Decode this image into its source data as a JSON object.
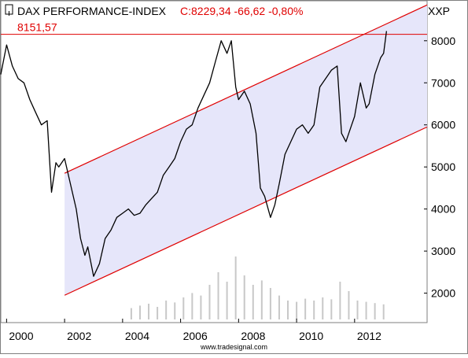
{
  "header": {
    "index_name": "DAX PERFORMANCE-INDEX",
    "quote": "C:8229,34 -66,62 -0,80%",
    "symbol": "XXP"
  },
  "watermark": "www.tradesignal.com",
  "colors": {
    "price_line": "#000000",
    "channel_line": "#e00000",
    "channel_fill": "#e6e6fa",
    "horizontal_line": "#e00000",
    "title_quote": "#e00000",
    "volume": "#c8c8c8",
    "frame": "#7f7f7f"
  },
  "chart_data": {
    "type": "line",
    "title": "DAX PERFORMANCE-INDEX",
    "xlim": [
      1999.8,
      2014.5
    ],
    "ylim": [
      1300,
      8950
    ],
    "x_ticks": [
      "2000",
      "2002",
      "2004",
      "2006",
      "2008",
      "2010",
      "2012"
    ],
    "y_ticks": [
      "2000",
      "3000",
      "4000",
      "5000",
      "6000",
      "7000",
      "8000"
    ],
    "grid": false,
    "legend": "none",
    "series": [
      {
        "x": [
          1999.8,
          2000.0,
          2000.2,
          2000.4,
          2000.6,
          2000.8,
          2001.0,
          2001.2,
          2001.4,
          2001.55,
          2001.7,
          2001.8,
          2002.0,
          2002.2,
          2002.4,
          2002.55,
          2002.7,
          2002.8,
          2003.0,
          2003.2,
          2003.4,
          2003.6,
          2003.8,
          2004.0,
          2004.2,
          2004.4,
          2004.6,
          2004.8,
          2005.0,
          2005.2,
          2005.4,
          2005.6,
          2005.8,
          2006.0,
          2006.2,
          2006.4,
          2006.6,
          2006.8,
          2007.0,
          2007.2,
          2007.4,
          2007.6,
          2007.75,
          2007.9,
          2008.0,
          2008.2,
          2008.4,
          2008.6,
          2008.75,
          2008.9,
          2009.1,
          2009.25,
          2009.4,
          2009.6,
          2009.8,
          2010.0,
          2010.2,
          2010.4,
          2010.6,
          2010.8,
          2011.0,
          2011.2,
          2011.4,
          2011.55,
          2011.7,
          2011.9,
          2012.0,
          2012.2,
          2012.4,
          2012.5,
          2012.7,
          2012.9,
          2013.0,
          2013.1
        ],
        "values": [
          7200,
          7900,
          7400,
          7100,
          7000,
          6600,
          6300,
          6000,
          6100,
          4400,
          5100,
          5000,
          5200,
          4600,
          4000,
          3300,
          2900,
          3100,
          2400,
          2700,
          3300,
          3500,
          3800,
          3900,
          4000,
          3850,
          3900,
          4100,
          4250,
          4400,
          4800,
          5000,
          5200,
          5600,
          5900,
          6000,
          6400,
          6700,
          7000,
          7500,
          8000,
          7700,
          8000,
          6900,
          6600,
          6800,
          6500,
          5800,
          4500,
          4300,
          3800,
          4100,
          4600,
          5300,
          5600,
          5900,
          6000,
          5800,
          6000,
          6900,
          7100,
          7300,
          7400,
          5800,
          5600,
          6000,
          6200,
          7000,
          6400,
          6500,
          7200,
          7600,
          7700,
          8229
        ]
      }
    ],
    "volume": {
      "x": [
        2004.3,
        2004.6,
        2004.9,
        2005.2,
        2005.5,
        2005.8,
        2006.1,
        2006.4,
        2006.7,
        2007.0,
        2007.3,
        2007.6,
        2007.9,
        2008.2,
        2008.5,
        2008.8,
        2009.1,
        2009.4,
        2009.7,
        2010.0,
        2010.3,
        2010.6,
        2010.9,
        2011.2,
        2011.5,
        2011.8,
        2012.1,
        2012.4,
        2012.7,
        2013.0
      ],
      "values": [
        0.18,
        0.22,
        0.25,
        0.2,
        0.3,
        0.27,
        0.35,
        0.42,
        0.38,
        0.55,
        0.75,
        0.6,
        1.0,
        0.7,
        0.55,
        0.62,
        0.5,
        0.38,
        0.3,
        0.28,
        0.33,
        0.3,
        0.35,
        0.32,
        0.6,
        0.45,
        0.3,
        0.28,
        0.26,
        0.24
      ]
    },
    "channel": {
      "upper": {
        "x": [
          2002.0,
          2014.5
        ],
        "y": [
          4850,
          8850
        ]
      },
      "lower": {
        "x": [
          2002.0,
          2014.5
        ],
        "y": [
          1950,
          5950
        ]
      }
    },
    "horizontal_line": {
      "value": 8151.57,
      "label": "8151,57"
    }
  }
}
